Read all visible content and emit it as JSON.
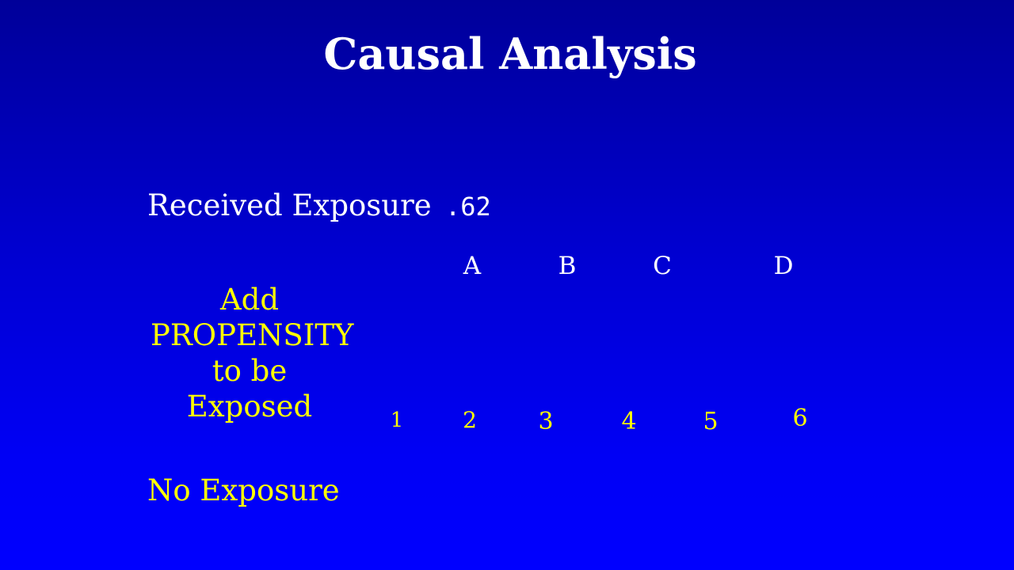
{
  "slide": {
    "title": "Causal Analysis",
    "received_exposure": {
      "label": "Received Exposure",
      "value": ".62"
    },
    "columns": [
      "A",
      "B",
      "C",
      "D"
    ],
    "propensity": {
      "line1": "Add",
      "line2": "PROPENSITY",
      "line3": "to be Exposed"
    },
    "numbers": [
      "1",
      "2",
      "3",
      "4",
      "5",
      "6"
    ],
    "no_exposure_label": "No Exposure"
  },
  "colors": {
    "background_top": "#000099",
    "background_bottom": "#0000ff",
    "title_text": "#ffffff",
    "highlight_text": "#ffff00"
  }
}
